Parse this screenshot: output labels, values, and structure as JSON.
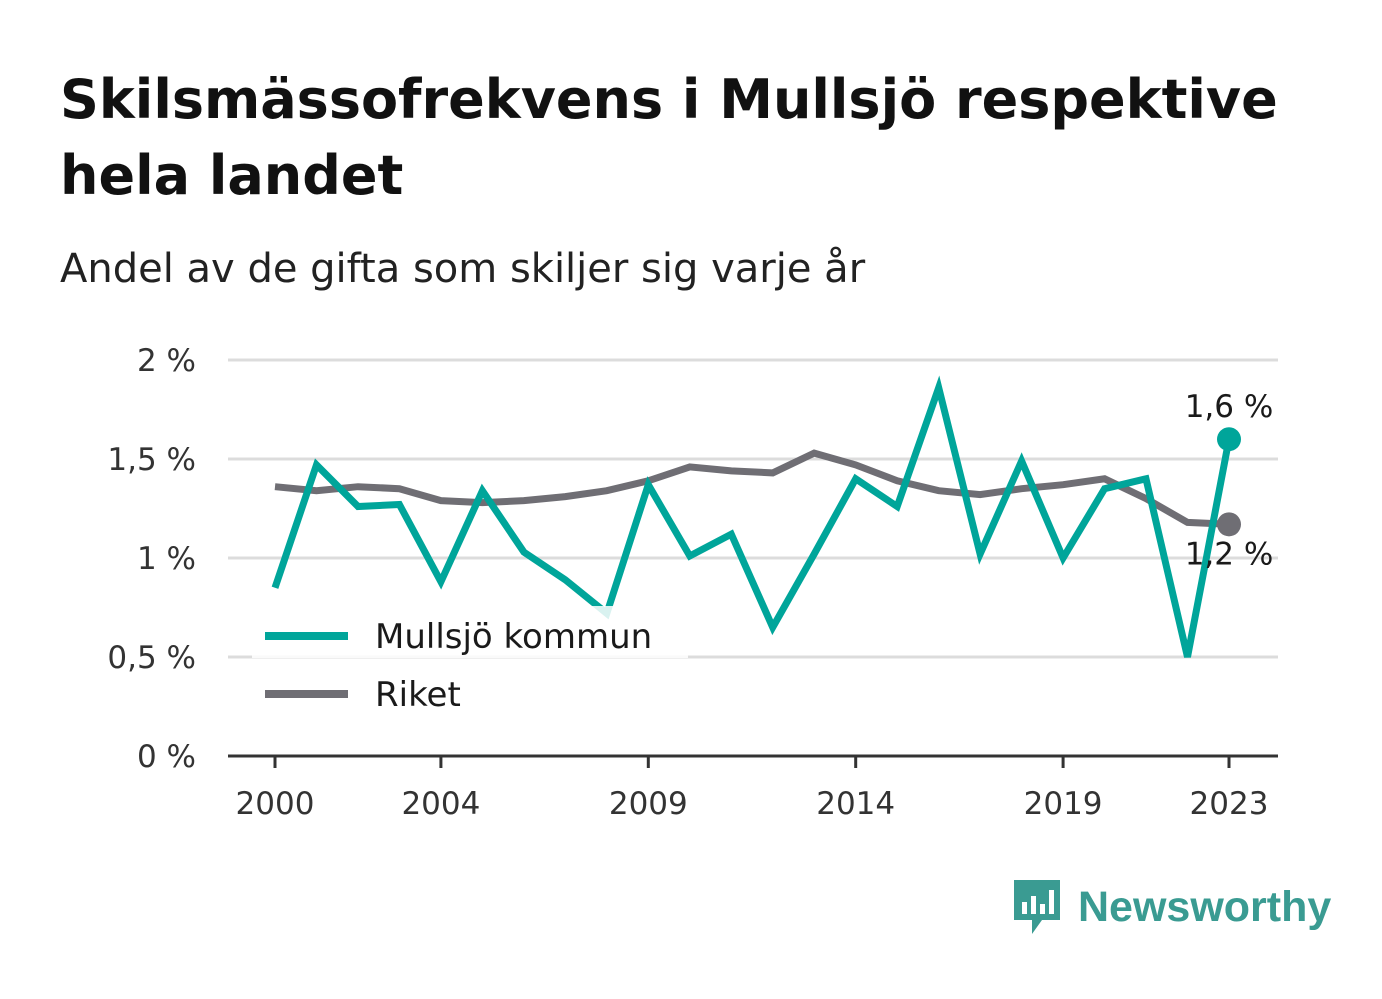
{
  "title": "Skilsmässofrekvens i Mullsjö respektive hela landet",
  "subtitle": "Andel av de gifta som skiljer sig varje år",
  "brand": {
    "name": "Newsworthy",
    "color": "#3a9b92",
    "icon": "newsworthy-bar-chart-icon"
  },
  "chart_data": {
    "type": "line",
    "x": [
      2000,
      2001,
      2002,
      2003,
      2004,
      2005,
      2006,
      2007,
      2008,
      2009,
      2010,
      2011,
      2012,
      2013,
      2014,
      2015,
      2016,
      2017,
      2018,
      2019,
      2020,
      2021,
      2022,
      2023
    ],
    "x_ticks": [
      2000,
      2004,
      2009,
      2014,
      2019,
      2023
    ],
    "x_tick_labels": [
      "2000",
      "2004",
      "2009",
      "2014",
      "2019",
      "2023"
    ],
    "ylim": [
      0,
      2
    ],
    "y_ticks": [
      0,
      0.5,
      1,
      1.5,
      2
    ],
    "y_tick_labels": [
      "0 %",
      "0,5 %",
      "1 %",
      "1,5 %",
      "2 %"
    ],
    "grid": true,
    "legend_position": "bottom-left",
    "series": [
      {
        "name": "Mullsjö kommun",
        "color": "#00a59a",
        "values": [
          0.85,
          1.47,
          1.26,
          1.27,
          0.88,
          1.34,
          1.03,
          0.89,
          0.72,
          1.37,
          1.01,
          1.12,
          0.65,
          1.02,
          1.4,
          1.26,
          1.86,
          1.02,
          1.49,
          1.0,
          1.35,
          1.4,
          0.5,
          1.6
        ],
        "end_label": "1,6 %"
      },
      {
        "name": "Riket",
        "color": "#6f6e74",
        "values": [
          1.36,
          1.34,
          1.36,
          1.35,
          1.29,
          1.28,
          1.29,
          1.31,
          1.34,
          1.39,
          1.46,
          1.44,
          1.43,
          1.53,
          1.47,
          1.39,
          1.34,
          1.32,
          1.35,
          1.37,
          1.4,
          1.3,
          1.18,
          1.17
        ],
        "end_label": "1,2 %"
      }
    ]
  }
}
